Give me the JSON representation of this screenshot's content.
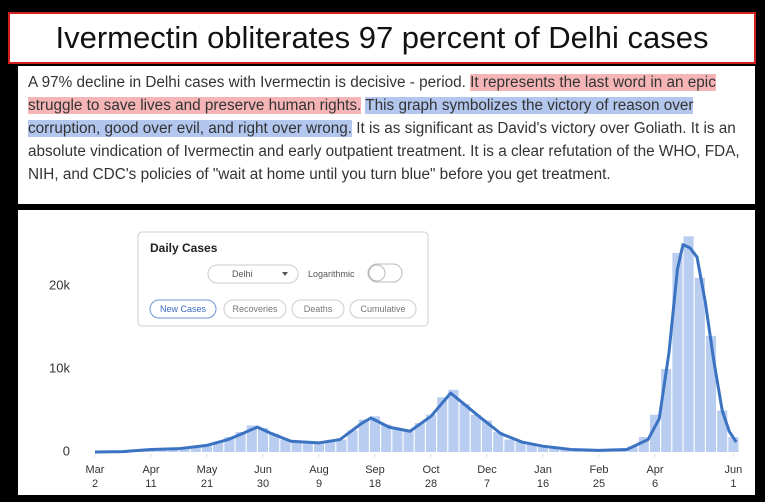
{
  "headline": "Ivermectin obliterates 97 percent of Delhi cases",
  "paragraph": [
    {
      "text": "A 97% decline in Delhi cases with Ivermectin is decisive - period. ",
      "highlight": null
    },
    {
      "text": "It represents the last word in an epic struggle to save lives and preserve human rights.",
      "highlight": "#f5b5b7"
    },
    {
      "text": " ",
      "highlight": null
    },
    {
      "text": "This graph symbolizes the victory of reason over corruption, good over evil, and right over wrong.",
      "highlight": "#b2c6ee"
    },
    {
      "text": " It is as significant as David's victory over Goliath. It is an absolute vindication of Ivermectin and early outpatient treatment. It is a clear refutation of the WHO, FDA, NIH, and CDC's policies of \"wait at home until you turn blue\" before you get treatment.",
      "highlight": null
    }
  ],
  "widget": {
    "title": "Daily Cases",
    "dropdown": "Delhi",
    "toggle": "Logarithmic",
    "buttons": [
      "New Cases",
      "Recoveries",
      "Deaths",
      "Cumulative"
    ]
  },
  "chart_data": {
    "type": "bar-line",
    "xlim": [
      -10,
      465
    ],
    "xticks": [
      {
        "value": 0,
        "label": [
          "Mar",
          "2"
        ]
      },
      {
        "value": 40,
        "label": [
          "Apr",
          "11"
        ]
      },
      {
        "value": 80,
        "label": [
          "May",
          "21"
        ]
      },
      {
        "value": 120,
        "label": [
          "Jun",
          "30"
        ]
      },
      {
        "value": 160,
        "label": [
          "Aug",
          "9"
        ]
      },
      {
        "value": 200,
        "label": [
          "Sep",
          "18"
        ]
      },
      {
        "value": 240,
        "label": [
          "Oct",
          "28"
        ]
      },
      {
        "value": 280,
        "label": [
          "Dec",
          "7"
        ]
      },
      {
        "value": 320,
        "label": [
          "Jan",
          "16"
        ]
      },
      {
        "value": 360,
        "label": [
          "Feb",
          "25"
        ]
      },
      {
        "value": 400,
        "label": [
          "Apr",
          "6"
        ]
      },
      {
        "value": 456,
        "label": [
          "Jun",
          "1"
        ]
      }
    ],
    "ylim": [
      0,
      27000
    ],
    "yticks": [
      0,
      {
        "value": 10000,
        "label": "10k"
      },
      {
        "value": 20000,
        "label": "20k"
      }
    ],
    "bars": {
      "color": "#b9cdf0",
      "x": [
        0,
        8,
        16,
        24,
        32,
        40,
        48,
        56,
        64,
        72,
        80,
        88,
        96,
        104,
        112,
        120,
        128,
        136,
        144,
        152,
        160,
        168,
        176,
        184,
        192,
        200,
        208,
        216,
        224,
        232,
        240,
        248,
        256,
        264,
        272,
        280,
        288,
        296,
        304,
        312,
        320,
        328,
        336,
        344,
        352,
        360,
        368,
        376,
        384,
        392,
        400,
        408,
        416,
        424,
        432,
        440,
        448,
        456
      ],
      "values": [
        0,
        0,
        50,
        100,
        200,
        300,
        350,
        400,
        450,
        600,
        900,
        1200,
        1800,
        2400,
        3200,
        2900,
        2200,
        1500,
        1200,
        1100,
        1000,
        1200,
        1500,
        2600,
        3900,
        4300,
        3300,
        2700,
        2500,
        3500,
        4500,
        6600,
        7500,
        5800,
        4500,
        3800,
        2400,
        1500,
        1200,
        900,
        700,
        500,
        350,
        250,
        200,
        200,
        220,
        300,
        700,
        1800,
        4500,
        10000,
        24000,
        26000,
        21000,
        14000,
        5000,
        1800
      ]
    },
    "line": {
      "color": "#3b73c2",
      "x": [
        0,
        20,
        40,
        60,
        80,
        95,
        105,
        116,
        125,
        140,
        160,
        175,
        190,
        197,
        210,
        225,
        240,
        254,
        262,
        275,
        290,
        305,
        320,
        340,
        360,
        380,
        395,
        403,
        410,
        416,
        420,
        425,
        430,
        436,
        442,
        448,
        453,
        458
      ],
      "values": [
        0,
        50,
        300,
        400,
        800,
        1500,
        2200,
        3000,
        2300,
        1300,
        1100,
        1500,
        3400,
        4100,
        3000,
        2500,
        4300,
        7100,
        6000,
        4200,
        2200,
        1200,
        700,
        300,
        200,
        300,
        1500,
        4000,
        12000,
        22000,
        25000,
        24600,
        23500,
        18000,
        11000,
        5000,
        2500,
        1200
      ]
    }
  }
}
